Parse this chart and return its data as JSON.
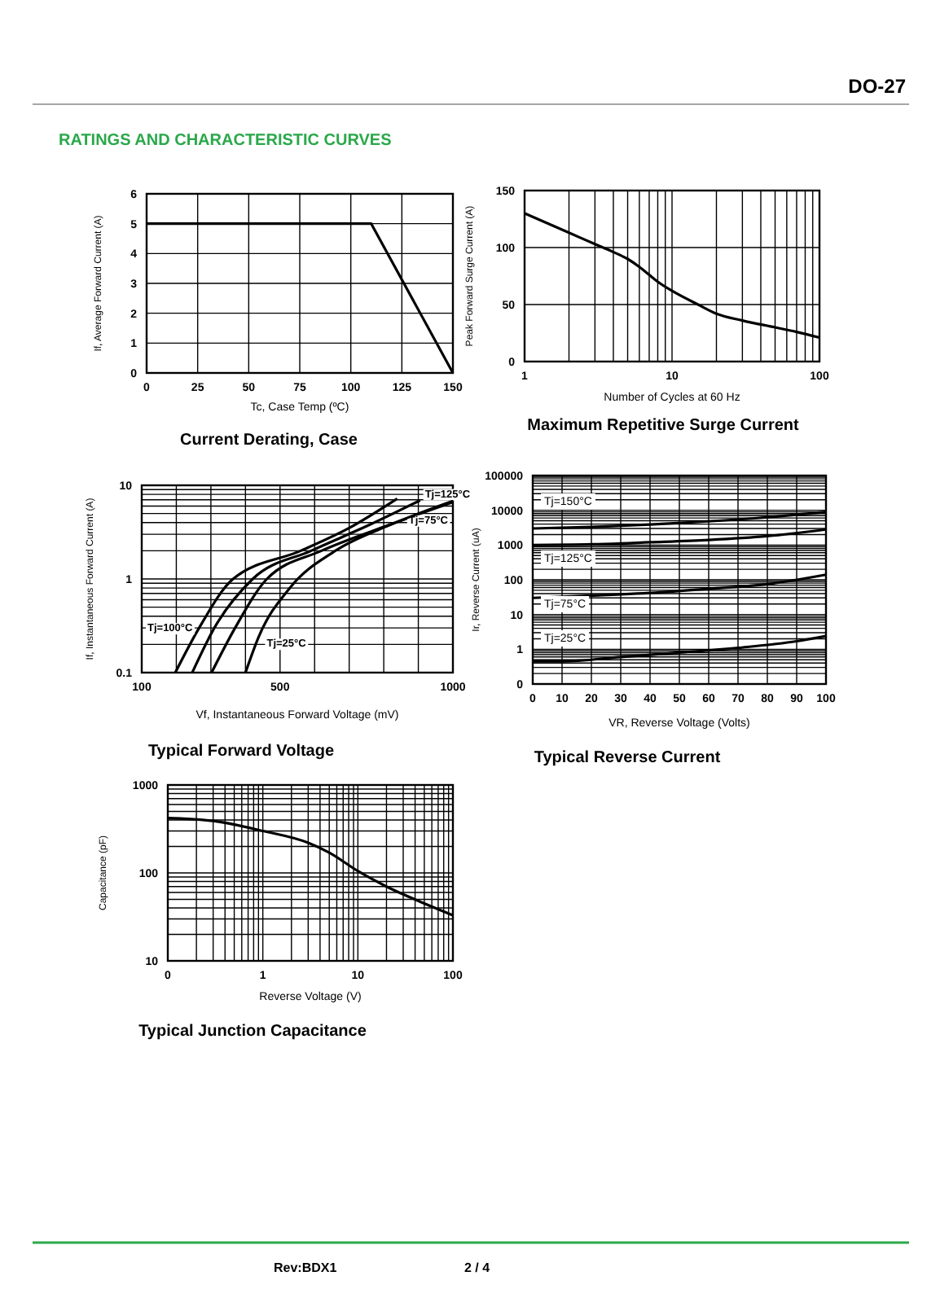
{
  "chart_data": [
    {
      "type": "line",
      "title": "Current Derating, Case",
      "xlabel": "Tc, Case Temp (ºC)",
      "ylabel": "If, Average Forward Current (A)",
      "xlim": [
        0,
        150
      ],
      "xticks": [
        0,
        25,
        50,
        75,
        100,
        125,
        150
      ],
      "ylim": [
        0,
        6
      ],
      "yticks": [
        0,
        1,
        2,
        3,
        4,
        5,
        6
      ],
      "grid": true,
      "series": [
        {
          "color": "#000000",
          "x": [
            0,
            110,
            150
          ],
          "values": [
            5,
            5,
            0
          ]
        }
      ],
      "annotations": [
        "DO-27",
        "RATINGS AND CHARACTERISTIC CURVES",
        "Rev:BDX1",
        "2 / 4"
      ]
    },
    {
      "type": "line",
      "title": "Maximum Repetitive Surge Current",
      "xlabel": "Number of Cycles at 60 Hz",
      "ylabel": "Peak Forward Surge Current (A)",
      "log": "x",
      "xlim": [
        1,
        100
      ],
      "xticks": [
        1,
        {
          "value": 2,
          "label": null
        },
        {
          "value": 3,
          "label": null
        },
        {
          "value": 4,
          "label": null
        },
        {
          "value": 5,
          "label": null
        },
        {
          "value": 6,
          "label": null
        },
        {
          "value": 7,
          "label": null
        },
        {
          "value": 8,
          "label": null
        },
        {
          "value": 9,
          "label": null
        },
        10,
        {
          "value": 20,
          "label": null
        },
        {
          "value": 30,
          "label": null
        },
        {
          "value": 40,
          "label": null
        },
        {
          "value": 50,
          "label": null
        },
        {
          "value": 60,
          "label": null
        },
        {
          "value": 70,
          "label": null
        },
        {
          "value": 80,
          "label": null
        },
        {
          "value": 90,
          "label": null
        },
        100
      ],
      "ylim": [
        0,
        150
      ],
      "yticks": [
        0,
        50,
        100,
        150
      ],
      "grid": true,
      "series": [
        {
          "color": "#000000",
          "x": [
            1,
            2,
            3,
            4,
            5,
            6,
            7,
            8,
            10,
            15,
            20,
            30,
            50,
            70,
            100
          ],
          "values": [
            130,
            113,
            103,
            96,
            90,
            83,
            76,
            70,
            62,
            50,
            42,
            36,
            30,
            26,
            21
          ]
        }
      ]
    },
    {
      "type": "line",
      "title": "Typical Forward Voltage",
      "xlabel": "Vf, Instantaneous  Forward  Voltage (mV)",
      "ylabel": "If, Instantaneous Forward Current (A)",
      "log": "y",
      "xlim": [
        100,
        1000
      ],
      "xticks": [
        100,
        {
          "value": 200,
          "label": null
        },
        {
          "value": 300,
          "label": null
        },
        {
          "value": 400,
          "label": null
        },
        500,
        {
          "value": 600,
          "label": null
        },
        {
          "value": 700,
          "label": null
        },
        {
          "value": 800,
          "label": null
        },
        {
          "value": 900,
          "label": null
        },
        1000
      ],
      "ylim": [
        0.1,
        10
      ],
      "yticks": [
        0.1,
        {
          "value": 0.2,
          "label": null
        },
        {
          "value": 0.3,
          "label": null
        },
        {
          "value": 0.4,
          "label": null
        },
        {
          "value": 0.5,
          "label": null
        },
        {
          "value": 0.6,
          "label": null
        },
        {
          "value": 0.7,
          "label": null
        },
        {
          "value": 0.8,
          "label": null
        },
        {
          "value": 0.9,
          "label": null
        },
        1,
        {
          "value": 2,
          "label": null
        },
        {
          "value": 3,
          "label": null
        },
        {
          "value": 4,
          "label": null
        },
        {
          "value": 5,
          "label": null
        },
        {
          "value": 6,
          "label": null
        },
        {
          "value": 7,
          "label": null
        },
        {
          "value": 8,
          "label": null
        },
        {
          "value": 9,
          "label": null
        },
        10
      ],
      "grid": true,
      "series": [
        {
          "name": "Tj=100°C",
          "color": "#000000",
          "x": [
            197,
            266,
            364,
            560,
            700,
            839
          ],
          "values": [
            0.1,
            0.3,
            1,
            2,
            3.5,
            7.2
          ]
        },
        {
          "name": "Tj=125°C",
          "color": "#000000",
          "x": [
            246,
            310,
            421,
            590,
            760,
            905
          ],
          "values": [
            0.1,
            0.3,
            1,
            2,
            3.8,
            6.9
          ]
        },
        {
          "name": "Tj=75°C",
          "color": "#000000",
          "x": [
            302,
            370,
            462,
            620,
            800,
            1000
          ],
          "values": [
            0.1,
            0.3,
            1,
            2,
            3.6,
            6.6
          ]
        },
        {
          "name": "Tj=25°C",
          "color": "#000000",
          "x": [
            400,
            438,
            528,
            660,
            820,
            1000
          ],
          "values": [
            0.1,
            0.24,
            0.8,
            2,
            3.8,
            6.8
          ]
        }
      ]
    },
    {
      "type": "line",
      "title": "Typical Reverse Current",
      "xlabel": "VR, Reverse Voltage (Volts)",
      "ylabel": "Ir, Reverse Current (uA)",
      "log": "y",
      "xlim": [
        0,
        100
      ],
      "xticks": [
        0,
        10,
        20,
        30,
        40,
        50,
        60,
        70,
        80,
        90,
        100
      ],
      "ylim": [
        0.1,
        100000
      ],
      "yticks": [
        {
          "value": 0.1,
          "label": "0"
        },
        {
          "value": 0.2,
          "label": null
        },
        {
          "value": 0.3,
          "label": null
        },
        {
          "value": 0.4,
          "label": null
        },
        {
          "value": 0.5,
          "label": null
        },
        {
          "value": 0.6,
          "label": null
        },
        {
          "value": 0.7,
          "label": null
        },
        {
          "value": 0.8,
          "label": null
        },
        {
          "value": 0.9,
          "label": null
        },
        1,
        {
          "value": 2,
          "label": null
        },
        {
          "value": 3,
          "label": null
        },
        {
          "value": 4,
          "label": null
        },
        {
          "value": 5,
          "label": null
        },
        {
          "value": 6,
          "label": null
        },
        {
          "value": 7,
          "label": null
        },
        {
          "value": 8,
          "label": null
        },
        {
          "value": 9,
          "label": null
        },
        10,
        {
          "value": 20,
          "label": null
        },
        {
          "value": 30,
          "label": null
        },
        {
          "value": 40,
          "label": null
        },
        {
          "value": 50,
          "label": null
        },
        {
          "value": 60,
          "label": null
        },
        {
          "value": 70,
          "label": null
        },
        {
          "value": 80,
          "label": null
        },
        {
          "value": 90,
          "label": null
        },
        100,
        {
          "value": 200,
          "label": null
        },
        {
          "value": 300,
          "label": null
        },
        {
          "value": 400,
          "label": null
        },
        {
          "value": 500,
          "label": null
        },
        {
          "value": 600,
          "label": null
        },
        {
          "value": 700,
          "label": null
        },
        {
          "value": 800,
          "label": null
        },
        {
          "value": 900,
          "label": null
        },
        1000,
        {
          "value": 2000,
          "label": null
        },
        {
          "value": 3000,
          "label": null
        },
        {
          "value": 4000,
          "label": null
        },
        {
          "value": 5000,
          "label": null
        },
        {
          "value": 6000,
          "label": null
        },
        {
          "value": 7000,
          "label": null
        },
        {
          "value": 8000,
          "label": null
        },
        {
          "value": 9000,
          "label": null
        },
        10000,
        {
          "value": 20000,
          "label": null
        },
        {
          "value": 30000,
          "label": null
        },
        {
          "value": 40000,
          "label": null
        },
        {
          "value": 50000,
          "label": null
        },
        {
          "value": 60000,
          "label": null
        },
        {
          "value": 70000,
          "label": null
        },
        {
          "value": 80000,
          "label": null
        },
        {
          "value": 90000,
          "label": null
        },
        100000
      ],
      "grid": true,
      "series": [
        {
          "name": "Tj=150°C",
          "color": "#000000",
          "x": [
            0,
            20,
            40,
            60,
            80,
            100
          ],
          "values": [
            3000,
            3300,
            3900,
            4800,
            6300,
            9000
          ]
        },
        {
          "name": "Tj=125°C",
          "color": "#000000",
          "x": [
            0,
            20,
            40,
            60,
            80,
            100
          ],
          "values": [
            1000,
            1050,
            1200,
            1400,
            1800,
            2800
          ]
        },
        {
          "name": "Tj=75°C",
          "color": "#000000",
          "x": [
            0,
            20,
            40,
            60,
            80,
            100
          ],
          "values": [
            30,
            35,
            42,
            55,
            75,
            140
          ]
        },
        {
          "name": "Tj=25°C",
          "color": "#000000",
          "x": [
            0,
            10,
            30,
            50,
            70,
            90,
            100
          ],
          "values": [
            0.45,
            0.45,
            0.6,
            0.8,
            1.1,
            1.7,
            2.4
          ]
        }
      ]
    },
    {
      "type": "line",
      "title": "Typical Junction Capacitance",
      "xlabel": "Reverse Voltage (V)",
      "ylabel": "Capacitance (pF)",
      "log": "xy",
      "xlim": [
        0.1,
        100
      ],
      "xticks": [
        {
          "value": 0.1,
          "label": "0"
        },
        {
          "value": 0.2,
          "label": null
        },
        {
          "value": 0.3,
          "label": null
        },
        {
          "value": 0.4,
          "label": null
        },
        {
          "value": 0.5,
          "label": null
        },
        {
          "value": 0.6,
          "label": null
        },
        {
          "value": 0.7,
          "label": null
        },
        {
          "value": 0.8,
          "label": null
        },
        {
          "value": 0.9,
          "label": null
        },
        1,
        {
          "value": 2,
          "label": null
        },
        {
          "value": 3,
          "label": null
        },
        {
          "value": 4,
          "label": null
        },
        {
          "value": 5,
          "label": null
        },
        {
          "value": 6,
          "label": null
        },
        {
          "value": 7,
          "label": null
        },
        {
          "value": 8,
          "label": null
        },
        {
          "value": 9,
          "label": null
        },
        10,
        {
          "value": 20,
          "label": null
        },
        {
          "value": 30,
          "label": null
        },
        {
          "value": 40,
          "label": null
        },
        {
          "value": 50,
          "label": null
        },
        {
          "value": 60,
          "label": null
        },
        {
          "value": 70,
          "label": null
        },
        {
          "value": 80,
          "label": null
        },
        {
          "value": 90,
          "label": null
        },
        100
      ],
      "ylim": [
        10,
        1000
      ],
      "yticks": [
        10,
        {
          "value": 20,
          "label": null
        },
        {
          "value": 30,
          "label": null
        },
        {
          "value": 40,
          "label": null
        },
        {
          "value": 50,
          "label": null
        },
        {
          "value": 60,
          "label": null
        },
        {
          "value": 70,
          "label": null
        },
        {
          "value": 80,
          "label": null
        },
        {
          "value": 90,
          "label": null
        },
        100,
        {
          "value": 200,
          "label": null
        },
        {
          "value": 300,
          "label": null
        },
        {
          "value": 400,
          "label": null
        },
        {
          "value": 500,
          "label": null
        },
        {
          "value": 600,
          "label": null
        },
        {
          "value": 700,
          "label": null
        },
        {
          "value": 800,
          "label": null
        },
        {
          "value": 900,
          "label": null
        },
        1000
      ],
      "grid": true,
      "series": [
        {
          "color": "#000000",
          "x": [
            0.1,
            0.3,
            1,
            3,
            5,
            10,
            20,
            50,
            100
          ],
          "values": [
            420,
            390,
            300,
            220,
            170,
            105,
            70,
            45,
            33
          ]
        }
      ]
    }
  ]
}
